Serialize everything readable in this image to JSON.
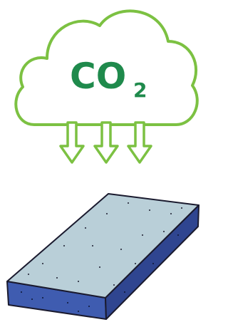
{
  "cloud": {
    "label": "CO",
    "subscript": "2"
  }
}
